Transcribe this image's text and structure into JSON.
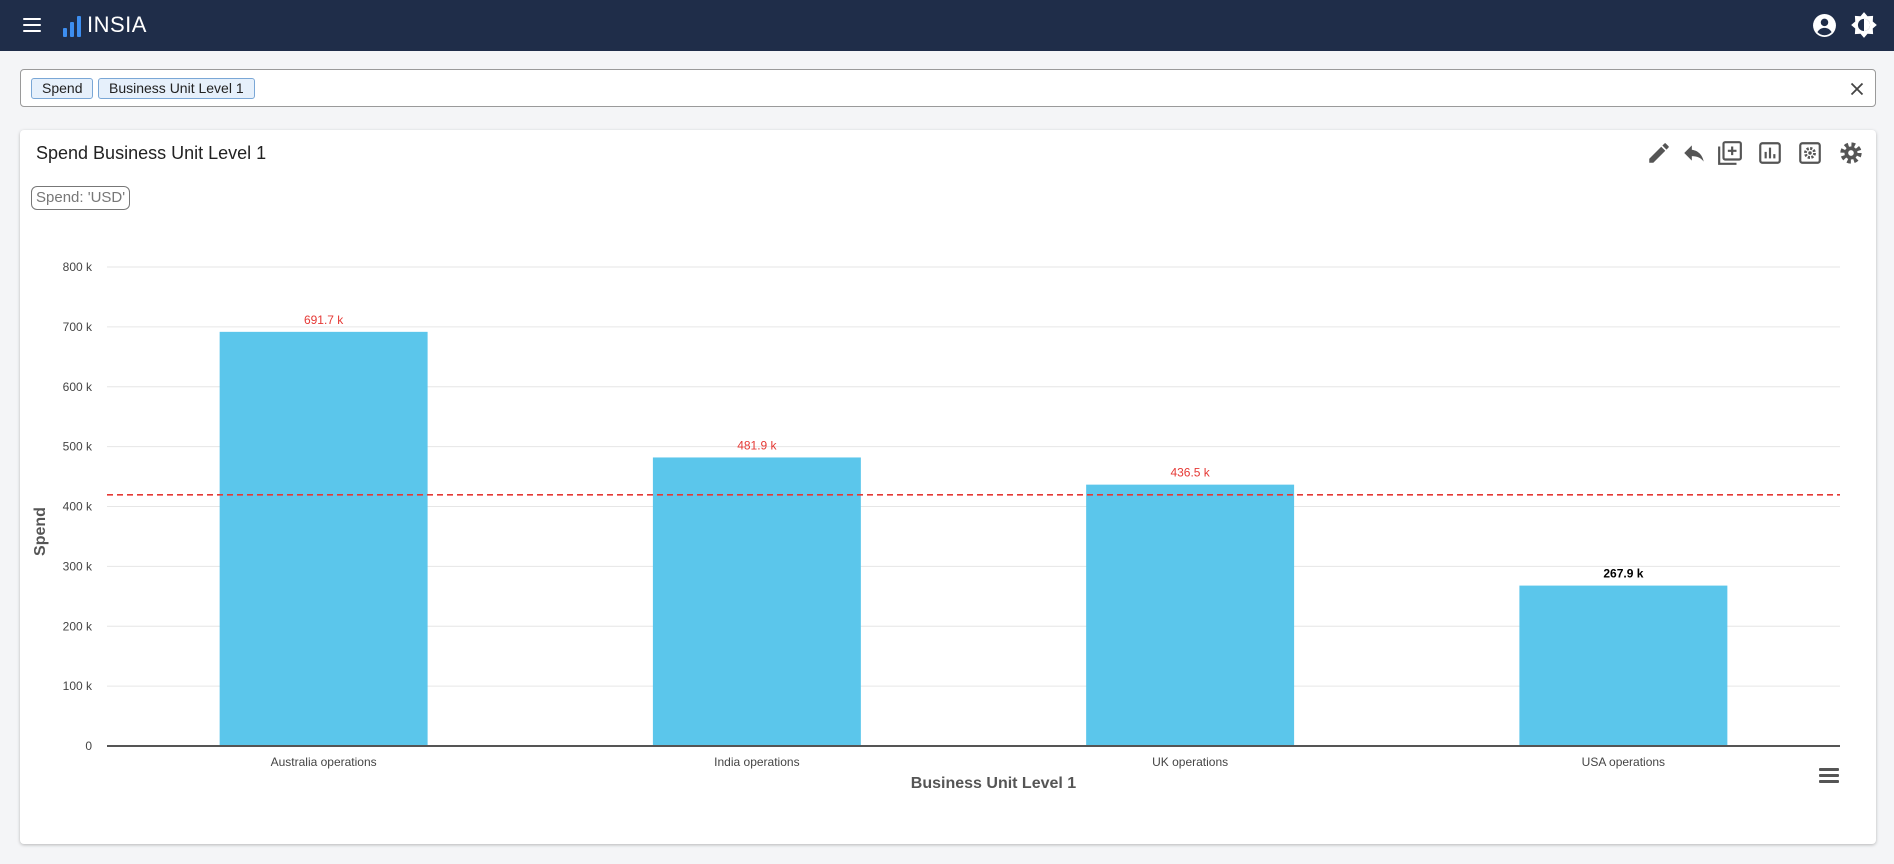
{
  "app": {
    "brand": "INSIA"
  },
  "search": {
    "chips": [
      "Spend",
      "Business Unit Level 1"
    ]
  },
  "card": {
    "title": "Spend Business Unit Level 1",
    "badge": "Spend: 'USD'"
  },
  "icons": {
    "menu": "menu-icon",
    "logo": "bar-chart-logo-icon",
    "account": "account-circle-icon",
    "theme": "brightness-icon",
    "clear": "close-icon",
    "edit": "pencil-icon",
    "undo": "reply-icon",
    "add": "add-box-icon",
    "chart_type": "bar-chart-icon",
    "settings_box": "settings-box-icon",
    "settings": "gear-icon",
    "chart_menu": "hamburger-icon"
  },
  "colors": {
    "topbar": "#1f2d49",
    "bar": "#5bc6eb",
    "reference_line": "#e53935",
    "logo": "#3d8ef0"
  },
  "chart_data": {
    "type": "bar",
    "categories": [
      "Australia operations",
      "India operations",
      "UK operations",
      "USA operations"
    ],
    "values": [
      691.7,
      481.9,
      436.5,
      267.9
    ],
    "data_labels": [
      "691.7 k",
      "481.9 k",
      "436.5 k",
      "267.9 k"
    ],
    "data_label_colors": [
      "#e53935",
      "#e53935",
      "#e53935",
      "#000000"
    ],
    "xlabel": "Business Unit Level 1",
    "ylabel": "Spend",
    "ylim": [
      0,
      800
    ],
    "yticks": [
      0,
      100,
      200,
      300,
      400,
      500,
      600,
      700,
      800
    ],
    "ytick_labels": [
      "0",
      "100 k",
      "200 k",
      "300 k",
      "400 k",
      "500 k",
      "600 k",
      "700 k",
      "800 k"
    ],
    "reference_line": 419.5,
    "grid": true
  }
}
